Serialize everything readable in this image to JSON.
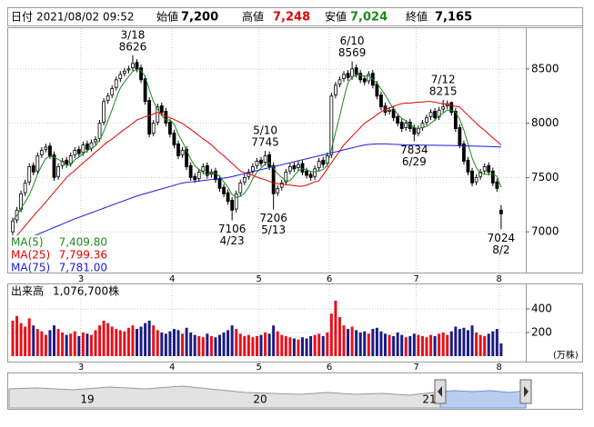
{
  "header": {
    "date_label": "日付",
    "date": "2021/08/02 09:52",
    "open_label": "始値",
    "open": "7,200",
    "high_label": "高値",
    "high": "7,248",
    "low_label": "安値",
    "low": "7,024",
    "close_label": "終値",
    "close": "7,165"
  },
  "chart_data": {
    "type": "candlestick",
    "categories": [
      null,
      null,
      null,
      null,
      null,
      null,
      null,
      null,
      null,
      null,
      null,
      null,
      null,
      null,
      null,
      null,
      null,
      "3",
      null,
      null,
      null,
      null,
      null,
      null,
      null,
      null,
      null,
      null,
      null,
      null,
      null,
      null,
      null,
      null,
      null,
      null,
      null,
      null,
      null,
      "4",
      null,
      null,
      null,
      null,
      null,
      null,
      null,
      null,
      null,
      null,
      null,
      null,
      null,
      null,
      null,
      null,
      null,
      null,
      null,
      null,
      "5",
      null,
      null,
      null,
      null,
      null,
      null,
      null,
      null,
      null,
      null,
      null,
      null,
      null,
      null,
      null,
      null,
      "6",
      null,
      null,
      null,
      null,
      null,
      null,
      null,
      null,
      null,
      null,
      null,
      null,
      null,
      null,
      null,
      null,
      null,
      null,
      null,
      null,
      "7",
      null,
      null,
      null,
      null,
      null,
      null,
      null,
      null,
      null,
      null,
      null,
      null,
      null,
      null,
      null,
      null,
      null,
      null,
      null,
      "8"
    ],
    "open": [
      7000,
      7110,
      7210,
      7360,
      7460,
      7610,
      7560,
      7710,
      7760,
      7790,
      7710,
      7510,
      7610,
      7660,
      7630,
      7710,
      7760,
      7730,
      7810,
      7770,
      7830,
      7860,
      8010,
      8210,
      8260,
      8330,
      8410,
      8460,
      8490,
      8510,
      8560,
      8510,
      8410,
      8210,
      7910,
      8010,
      8160,
      8110,
      8010,
      7910,
      7810,
      7710,
      7760,
      7610,
      7510,
      7490,
      7560,
      7610,
      7530,
      7560,
      7490,
      7410,
      7360,
      7290,
      7210,
      7360,
      7460,
      7510,
      7560,
      7610,
      7660,
      7640,
      7710,
      7610,
      7360,
      7410,
      7460,
      7560,
      7610,
      7590,
      7630,
      7560,
      7530,
      7510,
      7590,
      7660,
      7630,
      7710,
      8260,
      8360,
      8410,
      8460,
      8430,
      8510,
      8460,
      8410,
      8390,
      8460,
      8360,
      8260,
      8160,
      8110,
      8130,
      8060,
      8010,
      7960,
      8010,
      7960,
      7910,
      7960,
      8010,
      8060,
      8110,
      8060,
      8130,
      8160,
      8190,
      8110,
      7960,
      7810,
      7660,
      7560,
      7460,
      7510,
      7560,
      7610,
      7560,
      7460,
      7200
    ],
    "high": [
      7130,
      7230,
      7380,
      7480,
      7630,
      7640,
      7730,
      7780,
      7810,
      7820,
      7740,
      7630,
      7680,
      7690,
      7730,
      7780,
      7790,
      7830,
      7840,
      7850,
      7880,
      8030,
      8230,
      8280,
      8350,
      8430,
      8480,
      8510,
      8530,
      8626,
      8590,
      8540,
      8440,
      8240,
      8030,
      8180,
      8190,
      8140,
      8040,
      7940,
      7840,
      7780,
      7790,
      7640,
      7540,
      7580,
      7630,
      7640,
      7580,
      7590,
      7520,
      7440,
      7390,
      7320,
      7380,
      7480,
      7530,
      7580,
      7630,
      7680,
      7690,
      7745,
      7740,
      7640,
      7430,
      7480,
      7580,
      7630,
      7640,
      7650,
      7660,
      7590,
      7560,
      7610,
      7680,
      7690,
      7730,
      8280,
      8380,
      8430,
      8480,
      8490,
      8569,
      8540,
      8490,
      8440,
      8480,
      8490,
      8390,
      8290,
      8190,
      8150,
      8160,
      8090,
      8040,
      8030,
      8040,
      7990,
      7980,
      8030,
      8080,
      8130,
      8140,
      8150,
      8215,
      8210,
      8200,
      8140,
      7990,
      7840,
      7690,
      7590,
      7530,
      7580,
      7630,
      7640,
      7590,
      7490,
      7248
    ],
    "low": [
      6970,
      7080,
      7180,
      7330,
      7430,
      7520,
      7530,
      7680,
      7730,
      7670,
      7470,
      7480,
      7580,
      7590,
      7600,
      7680,
      7690,
      7700,
      7730,
      7740,
      7800,
      7830,
      7980,
      8180,
      8230,
      8300,
      8380,
      8430,
      8460,
      8480,
      8470,
      8370,
      8170,
      7870,
      7880,
      7980,
      8070,
      7970,
      7870,
      7770,
      7670,
      7680,
      7570,
      7470,
      7450,
      7460,
      7530,
      7490,
      7500,
      7450,
      7370,
      7320,
      7250,
      7106,
      7180,
      7330,
      7430,
      7480,
      7530,
      7580,
      7600,
      7610,
      7570,
      7206,
      7330,
      7380,
      7430,
      7530,
      7550,
      7560,
      7520,
      7490,
      7470,
      7480,
      7560,
      7590,
      7600,
      7680,
      8230,
      8330,
      8380,
      8390,
      8400,
      8420,
      8370,
      8350,
      8360,
      8320,
      8220,
      8120,
      8070,
      8080,
      8020,
      7970,
      7920,
      7930,
      7920,
      7834,
      7880,
      7930,
      7980,
      8030,
      8020,
      8030,
      8100,
      8130,
      8070,
      7920,
      7770,
      7620,
      7520,
      7420,
      7430,
      7480,
      7530,
      7520,
      7420,
      7370,
      7024
    ],
    "close": [
      7100,
      7200,
      7350,
      7450,
      7600,
      7550,
      7700,
      7750,
      7780,
      7700,
      7500,
      7600,
      7650,
      7620,
      7700,
      7750,
      7720,
      7800,
      7760,
      7820,
      7850,
      8000,
      8200,
      8250,
      8320,
      8400,
      8450,
      8480,
      8500,
      8550,
      8500,
      8400,
      8200,
      7900,
      8000,
      8150,
      8100,
      8000,
      7900,
      7800,
      7700,
      7750,
      7600,
      7500,
      7480,
      7550,
      7600,
      7520,
      7550,
      7480,
      7400,
      7350,
      7280,
      7200,
      7350,
      7450,
      7500,
      7550,
      7600,
      7650,
      7630,
      7700,
      7600,
      7350,
      7400,
      7450,
      7550,
      7600,
      7580,
      7620,
      7550,
      7520,
      7500,
      7580,
      7650,
      7620,
      7700,
      8250,
      8350,
      8400,
      8450,
      8420,
      8500,
      8450,
      8400,
      8380,
      8450,
      8350,
      8250,
      8150,
      8100,
      8120,
      8050,
      8000,
      7950,
      8000,
      7950,
      7900,
      7950,
      8000,
      8050,
      8100,
      8050,
      8120,
      8150,
      8180,
      8100,
      7950,
      7800,
      7650,
      7550,
      7450,
      7500,
      7550,
      7600,
      7550,
      7450,
      7400,
      7165
    ],
    "up_color": "#ffffff",
    "down_color": "#000000",
    "ylim": [
      6625,
      8867
    ],
    "yticks": [
      7000,
      7500,
      8000,
      8500
    ],
    "grid": true,
    "series": [
      {
        "name": "MA(5)",
        "color": "#1a8a1a",
        "last_label": "7,409.80",
        "values": [
          7100,
          7150,
          7217,
          7275,
          7340,
          7430,
          7530,
          7610,
          7676,
          7696,
          7686,
          7666,
          7646,
          7614,
          7614,
          7664,
          7688,
          7718,
          7746,
          7770,
          7790,
          7846,
          7926,
          8024,
          8124,
          8234,
          8324,
          8380,
          8430,
          8476,
          8496,
          8486,
          8430,
          8310,
          8200,
          8130,
          8070,
          8030,
          8030,
          7990,
          7900,
          7830,
          7750,
          7670,
          7606,
          7576,
          7546,
          7530,
          7540,
          7540,
          7510,
          7460,
          7412,
          7342,
          7316,
          7326,
          7356,
          7410,
          7490,
          7550,
          7586,
          7626,
          7636,
          7586,
          7536,
          7500,
          7470,
          7470,
          7516,
          7560,
          7580,
          7574,
          7554,
          7554,
          7560,
          7574,
          7610,
          7760,
          7914,
          8064,
          8230,
          8374,
          8424,
          8444,
          8444,
          8430,
          8436,
          8406,
          8366,
          8316,
          8260,
          8194,
          8134,
          8084,
          8044,
          8024,
          7990,
          7960,
          7950,
          7960,
          7970,
          8000,
          8030,
          8064,
          8094,
          8120,
          8120,
          8100,
          8036,
          7936,
          7810,
          7680,
          7590,
          7540,
          7530,
          7530,
          7530,
          7510,
          7409.8
        ]
      },
      {
        "name": "MA(25)",
        "color": "#e60000",
        "last_label": "7,799.36",
        "values": [
          6920,
          6965,
          7010,
          7055,
          7100,
          7145,
          7190,
          7230,
          7275,
          7320,
          7365,
          7410,
          7455,
          7500,
          7535,
          7565,
          7600,
          7635,
          7665,
          7700,
          7735,
          7765,
          7800,
          7830,
          7855,
          7885,
          7915,
          7945,
          7970,
          8000,
          8030,
          8045,
          8060,
          8070,
          8085,
          8100,
          8085,
          8065,
          8050,
          8035,
          8015,
          8000,
          7970,
          7945,
          7915,
          7885,
          7855,
          7830,
          7800,
          7765,
          7730,
          7700,
          7665,
          7630,
          7595,
          7560,
          7545,
          7535,
          7520,
          7505,
          7490,
          7480,
          7465,
          7450,
          7445,
          7440,
          7435,
          7430,
          7425,
          7420,
          7420,
          7430,
          7445,
          7460,
          7470,
          7525,
          7580,
          7635,
          7690,
          7745,
          7800,
          7840,
          7880,
          7920,
          7960,
          8000,
          8025,
          8050,
          8080,
          8105,
          8130,
          8140,
          8155,
          8170,
          8180,
          8185,
          8185,
          8190,
          8195,
          8195,
          8200,
          8200,
          8195,
          8185,
          8180,
          8170,
          8165,
          8155,
          8150,
          8110,
          8075,
          8035,
          8000,
          7965,
          7935,
          7900,
          7865,
          7835,
          7799.36
        ]
      },
      {
        "name": "MA(75)",
        "color": "#1a1ae6",
        "last_label": "7,781.00",
        "values": [
          6880,
          6896,
          6912,
          6928,
          6944,
          6960,
          6976,
          6992,
          7008,
          7024,
          7040,
          7056,
          7072,
          7088,
          7104,
          7120,
          7134,
          7148,
          7162,
          7176,
          7190,
          7204,
          7218,
          7232,
          7246,
          7260,
          7274,
          7288,
          7302,
          7316,
          7330,
          7341,
          7352,
          7363,
          7374,
          7385,
          7395,
          7406,
          7417,
          7428,
          7439,
          7450,
          7455,
          7459,
          7464,
          7468,
          7473,
          7477,
          7482,
          7486,
          7491,
          7495,
          7500,
          7509,
          7518,
          7527,
          7536,
          7545,
          7555,
          7564,
          7573,
          7582,
          7591,
          7600,
          7609,
          7618,
          7627,
          7636,
          7645,
          7655,
          7664,
          7673,
          7682,
          7691,
          7700,
          7709,
          7718,
          7727,
          7736,
          7745,
          7755,
          7764,
          7773,
          7782,
          7791,
          7800,
          7805,
          7808,
          7810,
          7810,
          7810,
          7808,
          7806,
          7805,
          7803,
          7801,
          7800,
          7799,
          7799,
          7798,
          7798,
          7797,
          7797,
          7796,
          7796,
          7795,
          7795,
          7794,
          7793,
          7792,
          7791,
          7790,
          7789,
          7788,
          7787,
          7786,
          7785,
          7783,
          7781
        ]
      }
    ],
    "annotations": [
      {
        "date": "3/18",
        "value": 8626,
        "position": "above"
      },
      {
        "date": "4/23",
        "value": 7106,
        "position": "below"
      },
      {
        "date": "5/10",
        "value": 7745,
        "position": "above"
      },
      {
        "date": "5/13",
        "value": 7206,
        "position": "below"
      },
      {
        "date": "6/10",
        "value": 8569,
        "position": "above"
      },
      {
        "date": "6/29",
        "value": 7834,
        "position": "below"
      },
      {
        "date": "7/12",
        "value": 8215,
        "position": "above"
      },
      {
        "date": "8/2",
        "value": 7024,
        "position": "below"
      }
    ],
    "volume": {
      "label": "出来高",
      "total_label": "1,076,700株",
      "unit": "(万株)",
      "up_color": "#e8101a",
      "down_color": "#1c1c84",
      "ylim": [
        0,
        600
      ],
      "yticks": [
        200,
        400
      ],
      "values": [
        300,
        340,
        280,
        250,
        320,
        260,
        230,
        210,
        180,
        220,
        260,
        230,
        200,
        180,
        190,
        210,
        170,
        200,
        190,
        180,
        220,
        260,
        300,
        280,
        250,
        230,
        220,
        210,
        240,
        260,
        230,
        250,
        280,
        300,
        260,
        220,
        200,
        190,
        210,
        230,
        220,
        190,
        240,
        200,
        180,
        170,
        160,
        190,
        170,
        160,
        180,
        200,
        220,
        260,
        230,
        190,
        170,
        180,
        160,
        170,
        180,
        200,
        190,
        260,
        210,
        180,
        170,
        160,
        150,
        140,
        160,
        150,
        170,
        180,
        190,
        170,
        200,
        360,
        470,
        330,
        260,
        230,
        250,
        220,
        200,
        210,
        190,
        230,
        240,
        210,
        190,
        180,
        170,
        200,
        180,
        160,
        170,
        190,
        180,
        170,
        160,
        180,
        170,
        190,
        200,
        180,
        210,
        250,
        230,
        240,
        220,
        260,
        200,
        180,
        170,
        190,
        210,
        230,
        107.67
      ]
    }
  },
  "navigator": {
    "labels": [
      "19",
      "20",
      "21"
    ]
  }
}
